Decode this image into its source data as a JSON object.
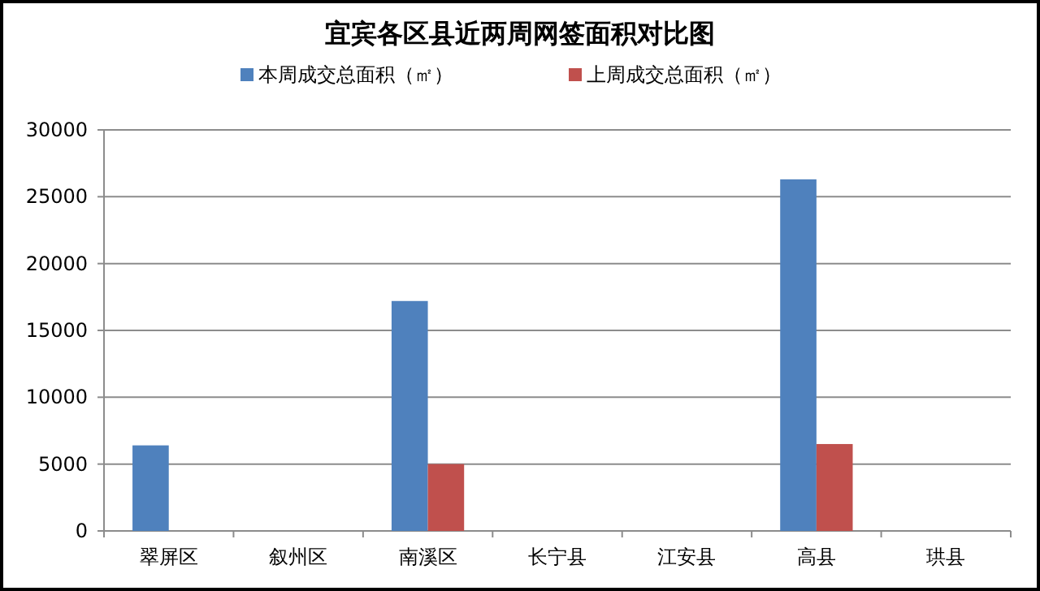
{
  "chart_data": {
    "type": "bar",
    "title": "宜宾各区县近两周网签面积对比图",
    "categories": [
      "翠屏区",
      "叙州区",
      "南溪区",
      "长宁县",
      "江安县",
      "高县",
      "珙县"
    ],
    "series": [
      {
        "name": "本周成交总面积（㎡）",
        "color": "#4f81bd",
        "values": [
          6400,
          null,
          17200,
          null,
          null,
          26300,
          null
        ]
      },
      {
        "name": "上周成交总面积（㎡）",
        "color": "#c0504d",
        "values": [
          null,
          null,
          5000,
          null,
          null,
          6500,
          null
        ]
      }
    ],
    "ylim": [
      0,
      30000
    ],
    "yticks": [
      0,
      5000,
      10000,
      15000,
      20000,
      25000,
      30000
    ],
    "grid": "y",
    "legend": "top"
  }
}
